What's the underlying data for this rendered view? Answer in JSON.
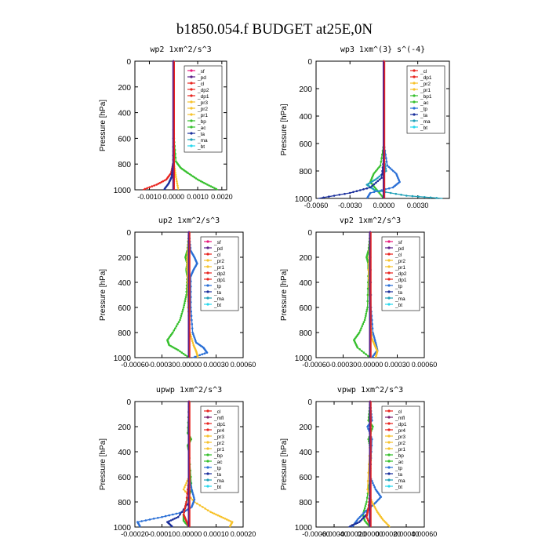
{
  "figure_title": "b1850.054.f  BUDGET at25E,0N",
  "colors": {
    "sf": "#e8197b",
    "pd": "#5a1f8a",
    "cl": "#e8251f",
    "dp2": "#e8251f",
    "dp1": "#e8251f",
    "pr2": "#f7c22a",
    "pr3": "#f7c22a",
    "pr1": "#f7c22a",
    "bp": "#37c02e",
    "bp1": "#37c02e",
    "ac": "#37c02e",
    "tp": "#2a6fd6",
    "ta": "#1a2f9c",
    "ma": "#1fa0b8",
    "bt": "#25d8ee",
    "mfl": "#7a1f6e",
    "pr4": "#e8251f"
  },
  "chart_data": [
    {
      "type": "line",
      "title": "wp2   1xm^2/s^3",
      "ylabel": "Pressure  [hPa]",
      "ylim": [
        1000,
        0
      ],
      "yticks": [
        0,
        200,
        400,
        600,
        800,
        1000
      ],
      "xlim": [
        -0.0016,
        0.0022
      ],
      "xticks": [
        -0.001,
        0,
        0.001,
        0.002
      ],
      "xtick_labels": [
        "-0.0010",
        "0.0000",
        "0.0010",
        "0.0020"
      ],
      "legend": [
        "_sf",
        "_pd",
        "_cl",
        "_dp2",
        "_dp1",
        "_pr3",
        "_pr2",
        "_pr1",
        "_bp",
        "_ac",
        "_ta",
        "_ma",
        "_bt"
      ],
      "legend_position": "top-right",
      "series": [
        {
          "name": "_sf",
          "color": "#e8197b",
          "p": [
            0,
            200,
            400,
            600,
            800,
            900,
            1000
          ],
          "v": [
            0,
            0,
            0,
            0,
            0,
            0,
            0
          ]
        },
        {
          "name": "_cl",
          "color": "#e8251f",
          "p": [
            0,
            200,
            400,
            600,
            800,
            870,
            920,
            960,
            1000
          ],
          "v": [
            0,
            0,
            0,
            0,
            -2e-05,
            -0.0001,
            -0.0003,
            -0.0007,
            -0.00128
          ]
        },
        {
          "name": "_pr1",
          "color": "#f7c22a",
          "p": [
            0,
            200,
            400,
            600,
            800,
            900,
            1000
          ],
          "v": [
            0,
            0,
            0,
            0,
            2e-05,
            0.0001,
            0.0002
          ]
        },
        {
          "name": "_ac",
          "color": "#37c02e",
          "p": [
            0,
            200,
            400,
            600,
            780,
            830,
            870,
            920,
            960,
            1000
          ],
          "v": [
            0,
            0,
            0,
            2e-05,
            0.0001,
            0.0003,
            0.0006,
            0.001,
            0.0014,
            0.00184
          ]
        },
        {
          "name": "_ta",
          "color": "#1a2f9c",
          "p": [
            0,
            400,
            800,
            900,
            950,
            1000
          ],
          "v": [
            0,
            0,
            -2e-05,
            -8e-05,
            -0.0002,
            -0.0004
          ]
        },
        {
          "name": "_pd",
          "color": "#5a1f8a",
          "p": [
            0,
            200,
            400,
            600,
            800,
            900,
            1000
          ],
          "v": [
            0,
            0,
            0,
            0,
            0,
            0,
            0
          ]
        }
      ]
    },
    {
      "type": "line",
      "title": "wp3   1xm^(3} s^(-4}",
      "ylabel": "Pressure  [hPa]",
      "ylim": [
        1000,
        0
      ],
      "yticks": [
        0,
        200,
        400,
        600,
        800,
        1000
      ],
      "xlim": [
        -0.006,
        0.0058
      ],
      "xticks": [
        -0.006,
        -0.003,
        0,
        0.003
      ],
      "xtick_labels": [
        "-0.0060",
        "-0.0030",
        "0.0000",
        "0.0030"
      ],
      "legend": [
        "_cl",
        "_dp1",
        "_pr2",
        "_pr1",
        "_bp1",
        "_ac",
        "_tp",
        "_ta",
        "_ma",
        "_bt"
      ],
      "legend_position": "top-right",
      "series": [
        {
          "name": "_bp1",
          "color": "#37c02e",
          "p": [
            0,
            600,
            760,
            820,
            880,
            940,
            1000
          ],
          "v": [
            0,
            0,
            -0.0003,
            -0.0009,
            -0.0012,
            -0.0006,
            0
          ]
        },
        {
          "name": "_tp",
          "color": "#2a6fd6",
          "p": [
            0,
            600,
            760,
            820,
            880,
            920,
            960,
            1000
          ],
          "v": [
            0,
            0,
            0.0003,
            0.0011,
            0.0014,
            0.0008,
            -0.0012,
            -0.0015
          ]
        },
        {
          "name": "_ma",
          "color": "#1fa0b8",
          "p": [
            0,
            700,
            800,
            860,
            900,
            940,
            980,
            1000
          ],
          "v": [
            0,
            0,
            0.0002,
            -0.0007,
            -0.0015,
            -0.0008,
            0.002,
            0.0052
          ]
        },
        {
          "name": "_ta",
          "color": "#1a2f9c",
          "p": [
            0,
            700,
            850,
            920,
            960,
            1000
          ],
          "v": [
            0,
            0,
            -0.0002,
            -0.0012,
            -0.003,
            -0.0058
          ]
        },
        {
          "name": "_cl",
          "color": "#e8251f",
          "p": [
            0,
            200,
            400,
            600,
            800,
            1000
          ],
          "v": [
            0,
            0,
            0,
            0,
            0,
            0
          ]
        }
      ]
    },
    {
      "type": "line",
      "title": "up2   1xm^2/s^3",
      "ylabel": "Pressure  [hPa]",
      "ylim": [
        1000,
        0
      ],
      "yticks": [
        0,
        200,
        400,
        600,
        800,
        1000
      ],
      "xlim": [
        -0.0006,
        0.0006
      ],
      "xticks": [
        -0.0006,
        -0.0003,
        0,
        0.0003,
        0.0006
      ],
      "xtick_labels": [
        "-0.00060",
        "-0.00030",
        "0.00000",
        "0.00030",
        "0.00060"
      ],
      "legend": [
        "_sf",
        "_pd",
        "_cl",
        "_pr2",
        "_pr1",
        "_dp2",
        "_dp1",
        "_tp",
        "_ta",
        "_ma",
        "_bt"
      ],
      "legend_position": "top-right",
      "series": [
        {
          "name": "_dp1",
          "color": "#37c02e",
          "p": [
            0,
            150,
            200,
            250,
            300,
            350,
            500,
            600,
            700,
            800,
            860,
            900,
            940,
            1000
          ],
          "v": [
            0,
            -2e-05,
            -4e-05,
            -2e-05,
            -3e-05,
            -2e-05,
            -3e-05,
            -6e-05,
            -0.0001,
            -0.00018,
            -0.00024,
            -0.00022,
            -0.00012,
            0
          ]
        },
        {
          "name": "_tp",
          "color": "#2a6fd6",
          "p": [
            0,
            150,
            200,
            250,
            300,
            350,
            600,
            800,
            880,
            920,
            960,
            1000
          ],
          "v": [
            0,
            2e-05,
            6e-05,
            9e-05,
            5e-05,
            2e-05,
            2e-05,
            4e-05,
            8e-05,
            0.00016,
            0.0002,
            4e-05
          ]
        },
        {
          "name": "_pr1",
          "color": "#f7c22a",
          "p": [
            0,
            200,
            300,
            600,
            800,
            900,
            950,
            1000
          ],
          "v": [
            0,
            -2e-05,
            -2e-05,
            -1e-05,
            1e-05,
            5e-05,
            8e-05,
            0.0001
          ]
        },
        {
          "name": "_cl",
          "color": "#e8251f",
          "p": [
            0,
            200,
            400,
            600,
            800,
            1000
          ],
          "v": [
            0,
            0,
            0,
            0,
            0,
            0
          ]
        },
        {
          "name": "_pd",
          "color": "#5a1f8a",
          "p": [
            0,
            200,
            400,
            600,
            800,
            1000
          ],
          "v": [
            0,
            0,
            0,
            0,
            0,
            0
          ]
        }
      ]
    },
    {
      "type": "line",
      "title": "vp2   1xm^2/s^3",
      "ylabel": "Pressure  [hPa]",
      "ylim": [
        1000,
        0
      ],
      "yticks": [
        0,
        200,
        400,
        600,
        800,
        1000
      ],
      "xlim": [
        -0.0006,
        0.0006
      ],
      "xticks": [
        -0.0006,
        -0.0003,
        0,
        0.0003,
        0.0006
      ],
      "xtick_labels": [
        "-0.00060",
        "-0.00030",
        "0.00000",
        "0.00030",
        "0.00060"
      ],
      "legend": [
        "_sf",
        "_pd",
        "_cl",
        "_pr2",
        "_pr1",
        "_dp2",
        "_dp1",
        "_tp",
        "_ta",
        "_ma",
        "_bt"
      ],
      "legend_position": "top-right",
      "series": [
        {
          "name": "_dp1",
          "color": "#37c02e",
          "p": [
            0,
            150,
            200,
            250,
            300,
            600,
            700,
            800,
            860,
            920,
            1000
          ],
          "v": [
            0,
            -2e-05,
            -4e-05,
            -2e-05,
            -2e-05,
            -3e-05,
            -6e-05,
            -0.00012,
            -0.00018,
            -0.00014,
            0
          ]
        },
        {
          "name": "_tp",
          "color": "#2a6fd6",
          "p": [
            0,
            600,
            800,
            880,
            940,
            1000
          ],
          "v": [
            0,
            1e-05,
            3e-05,
            6e-05,
            8e-05,
            2e-05
          ]
        },
        {
          "name": "_pr1",
          "color": "#f7c22a",
          "p": [
            0,
            300,
            700,
            850,
            900,
            950,
            1000
          ],
          "v": [
            0,
            -2e-05,
            0,
            2e-05,
            5e-05,
            8e-05,
            6e-05
          ]
        },
        {
          "name": "_cl",
          "color": "#e8251f",
          "p": [
            0,
            200,
            400,
            600,
            800,
            1000
          ],
          "v": [
            0,
            0,
            0,
            0,
            0,
            0
          ]
        },
        {
          "name": "_pd",
          "color": "#5a1f8a",
          "p": [
            0,
            200,
            400,
            600,
            800,
            1000
          ],
          "v": [
            0,
            0,
            0,
            0,
            0,
            0
          ]
        }
      ]
    },
    {
      "type": "line",
      "title": "upwp   1xm^2/s^3",
      "ylabel": "Pressure  [hPa]",
      "ylim": [
        1000,
        0
      ],
      "yticks": [
        0,
        200,
        400,
        600,
        800,
        1000
      ],
      "xlim": [
        -0.0002,
        0.0002
      ],
      "xticks": [
        -0.0002,
        -0.0001,
        0,
        0.0001,
        0.0002
      ],
      "xtick_labels": [
        "-0.00020",
        "-0.00010",
        "0.00000",
        "0.00010",
        "0.00020"
      ],
      "legend": [
        "_cl",
        "_mfl",
        "_dp1",
        "_pr4",
        "_pr3",
        "_pr2",
        "_pr1",
        "_bp",
        "_ac",
        "_tp",
        "_ta",
        "_ma",
        "_bt"
      ],
      "legend_position": "top-right",
      "series": [
        {
          "name": "_bp",
          "color": "#37c02e",
          "p": [
            0,
            250,
            300,
            350,
            400,
            700,
            800,
            900,
            950,
            1000
          ],
          "v": [
            0,
            -5e-06,
            8e-06,
            -5e-06,
            0,
            1e-05,
            -1e-05,
            -2e-05,
            -2e-05,
            0
          ]
        },
        {
          "name": "_pr1",
          "color": "#f7c22a",
          "p": [
            0,
            600,
            700,
            800,
            880,
            920,
            960,
            1000
          ],
          "v": [
            0,
            0,
            -2e-05,
            2e-05,
            8e-05,
            0.00012,
            0.00016,
            0.00015
          ]
        },
        {
          "name": "_tp",
          "color": "#2a6fd6",
          "p": [
            0,
            600,
            700,
            780,
            840,
            880,
            920,
            960,
            1000
          ],
          "v": [
            0,
            0,
            1e-05,
            2e-05,
            1e-05,
            -2e-05,
            -0.0001,
            -0.00019,
            -0.00018
          ]
        },
        {
          "name": "_ta",
          "color": "#1a2f9c",
          "p": [
            0,
            800,
            920,
            960,
            1000
          ],
          "v": [
            0,
            0,
            -4e-05,
            -8e-05,
            -6e-05
          ]
        },
        {
          "name": "_dp1",
          "color": "#e8251f",
          "p": [
            0,
            600,
            800,
            900,
            950,
            1000
          ],
          "v": [
            0,
            0,
            -1e-05,
            -2e-05,
            -1e-05,
            0
          ]
        },
        {
          "name": "_cl",
          "color": "#e8251f",
          "p": [
            0,
            200,
            400,
            600,
            800,
            1000
          ],
          "v": [
            0,
            0,
            0,
            0,
            0,
            0
          ]
        },
        {
          "name": "_mfl",
          "color": "#7a1f6e",
          "p": [
            0,
            200,
            400,
            600,
            800,
            1000
          ],
          "v": [
            0,
            0,
            0,
            0,
            0,
            0
          ]
        }
      ]
    },
    {
      "type": "line",
      "title": "vpwp   1xm^2/s^3",
      "ylabel": "Pressure  [hPa]",
      "ylim": [
        1000,
        0
      ],
      "yticks": [
        0,
        200,
        400,
        600,
        800,
        1000
      ],
      "xlim": [
        -0.0006,
        0.0006
      ],
      "xticks": [
        -0.0006,
        -0.0004,
        -0.0002,
        0,
        0.0002,
        0.0004,
        0.0006
      ],
      "xtick_labels": [
        "-0.00060",
        "-0.00040",
        "-0.00020",
        "0.00000",
        "0.00020",
        "0.00040",
        "0.00060"
      ],
      "legend": [
        "_cl",
        "_mfl",
        "_dp1",
        "_pr4",
        "_pr3",
        "_pr2",
        "_pr1",
        "_bp",
        "_ac",
        "_tp",
        "_ta",
        "_ma",
        "_bt"
      ],
      "legend_position": "top-right",
      "series": [
        {
          "name": "_bp",
          "color": "#37c02e",
          "p": [
            0,
            150,
            200,
            300,
            400,
            600,
            800,
            900,
            950,
            1000
          ],
          "v": [
            0,
            -2e-05,
            3e-05,
            -2e-05,
            1e-05,
            0,
            -4e-05,
            -8e-05,
            -6e-05,
            0
          ]
        },
        {
          "name": "_tp",
          "color": "#2a6fd6",
          "p": [
            0,
            150,
            200,
            300,
            600,
            700,
            760,
            820,
            880,
            940,
            1000
          ],
          "v": [
            0,
            2e-05,
            -3e-05,
            2e-05,
            0,
            6e-05,
            0.00012,
            4e-05,
            -6e-05,
            -0.00014,
            -0.0002
          ]
        },
        {
          "name": "_pr1",
          "color": "#f7c22a",
          "p": [
            0,
            300,
            700,
            800,
            880,
            940,
            1000
          ],
          "v": [
            0,
            0,
            -3e-05,
            2e-05,
            8e-05,
            0.00014,
            0.00022
          ]
        },
        {
          "name": "_ta",
          "color": "#1a2f9c",
          "p": [
            0,
            800,
            900,
            960,
            1000
          ],
          "v": [
            0,
            0,
            -4e-05,
            -0.00012,
            -0.00024
          ]
        },
        {
          "name": "_dp1",
          "color": "#e8251f",
          "p": [
            0,
            700,
            850,
            920,
            1000
          ],
          "v": [
            0,
            0,
            -2e-05,
            -4e-05,
            1e-05
          ]
        },
        {
          "name": "_cl",
          "color": "#e8251f",
          "p": [
            0,
            200,
            400,
            600,
            800,
            1000
          ],
          "v": [
            0,
            0,
            0,
            0,
            0,
            0
          ]
        },
        {
          "name": "_mfl",
          "color": "#7a1f6e",
          "p": [
            0,
            200,
            400,
            600,
            800,
            1000
          ],
          "v": [
            0,
            0,
            0,
            0,
            0,
            0
          ]
        }
      ]
    }
  ]
}
